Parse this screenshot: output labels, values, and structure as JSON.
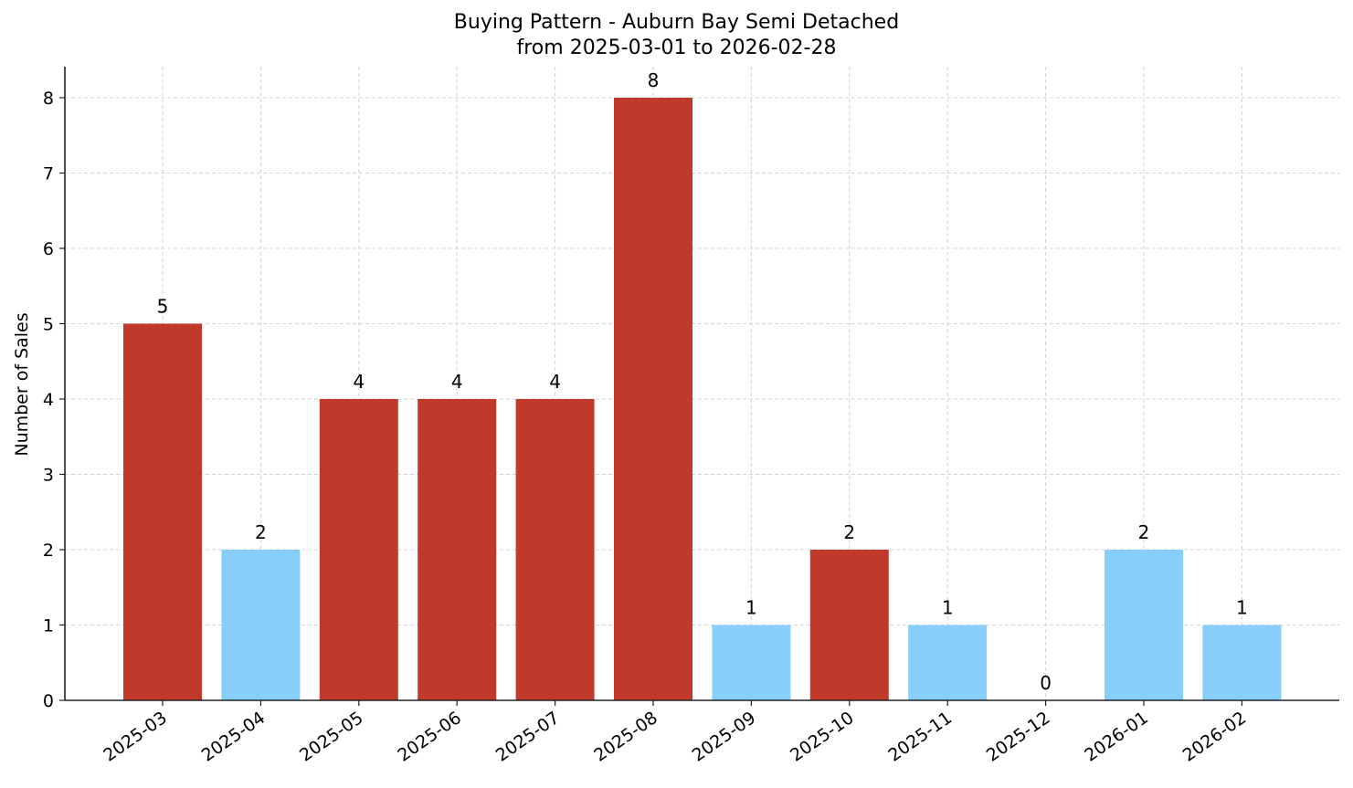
{
  "chart_data": {
    "type": "bar",
    "title": "Buying Pattern - Auburn Bay Semi Detached",
    "subtitle": "from 2025-03-01 to 2026-02-28",
    "xlabel": "",
    "ylabel": "Number of Sales",
    "ylim": [
      0,
      8.4
    ],
    "yticks": [
      0,
      1,
      2,
      3,
      4,
      5,
      6,
      7,
      8
    ],
    "grid": true,
    "legend": null,
    "categories": [
      "2025-03",
      "2025-04",
      "2025-05",
      "2025-06",
      "2025-07",
      "2025-08",
      "2025-09",
      "2025-10",
      "2025-11",
      "2025-12",
      "2026-01",
      "2026-02"
    ],
    "values": [
      5,
      2,
      4,
      4,
      4,
      8,
      1,
      2,
      1,
      0,
      2,
      1
    ],
    "bar_colors": [
      "#c0392b",
      "#87cefa",
      "#c0392b",
      "#c0392b",
      "#c0392b",
      "#c0392b",
      "#87cefa",
      "#c0392b",
      "#87cefa",
      "#87cefa",
      "#87cefa",
      "#87cefa"
    ],
    "data_labels": [
      "5",
      "2",
      "4",
      "4",
      "4",
      "8",
      "1",
      "2",
      "1",
      "0",
      "2",
      "1"
    ]
  },
  "colors": {
    "high": "#c0392b",
    "low": "#87cefa"
  }
}
